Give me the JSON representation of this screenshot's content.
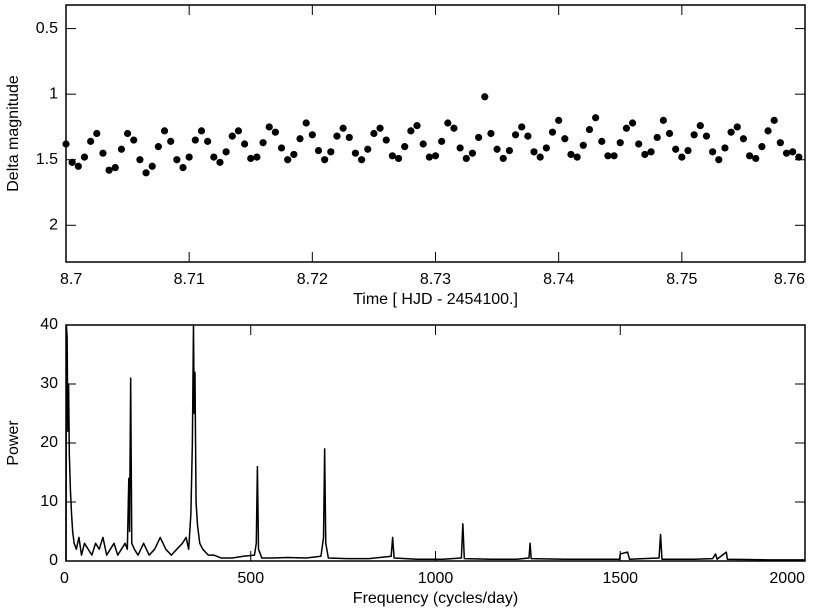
{
  "chart_data": [
    {
      "type": "scatter",
      "xlabel": "Time  [ HJD - 2454100.]",
      "ylabel": "Delta magnitude",
      "xlim": [
        8.7,
        8.76
      ],
      "xticks": [
        8.7,
        8.71,
        8.72,
        8.73,
        8.74,
        8.75,
        8.76
      ],
      "ylim": [
        2.28,
        0.32
      ],
      "yticks": [
        0.5,
        1,
        1.5,
        2
      ],
      "color": "#000000",
      "x": [
        8.7,
        8.7005,
        8.701,
        8.7015,
        8.702,
        8.7025,
        8.703,
        8.7035,
        8.704,
        8.7045,
        8.705,
        8.7055,
        8.706,
        8.7065,
        8.707,
        8.7075,
        8.708,
        8.7085,
        8.709,
        8.7095,
        8.71,
        8.7105,
        8.711,
        8.7115,
        8.712,
        8.7125,
        8.713,
        8.7135,
        8.714,
        8.7145,
        8.715,
        8.7155,
        8.716,
        8.7165,
        8.717,
        8.7175,
        8.718,
        8.7185,
        8.719,
        8.7195,
        8.72,
        8.7205,
        8.721,
        8.7215,
        8.722,
        8.7225,
        8.723,
        8.7235,
        8.724,
        8.7245,
        8.725,
        8.7255,
        8.726,
        8.7265,
        8.727,
        8.7275,
        8.728,
        8.7285,
        8.729,
        8.7295,
        8.73,
        8.7305,
        8.731,
        8.7315,
        8.732,
        8.7325,
        8.733,
        8.7335,
        8.734,
        8.7345,
        8.735,
        8.7355,
        8.736,
        8.7365,
        8.737,
        8.7375,
        8.738,
        8.7385,
        8.739,
        8.7395,
        8.74,
        8.7405,
        8.741,
        8.7415,
        8.742,
        8.7425,
        8.743,
        8.7435,
        8.744,
        8.7445,
        8.745,
        8.7455,
        8.746,
        8.7465,
        8.747,
        8.7475,
        8.748,
        8.7485,
        8.749,
        8.7495,
        8.75,
        8.7505,
        8.751,
        8.7515,
        8.752,
        8.7525,
        8.753,
        8.7535,
        8.754,
        8.7545,
        8.755,
        8.7555,
        8.756,
        8.7565,
        8.757,
        8.7575,
        8.758,
        8.7585,
        8.759,
        8.7595
      ],
      "values": [
        1.38,
        1.52,
        1.55,
        1.48,
        1.36,
        1.3,
        1.45,
        1.58,
        1.56,
        1.42,
        1.3,
        1.35,
        1.5,
        1.6,
        1.55,
        1.4,
        1.28,
        1.36,
        1.5,
        1.56,
        1.48,
        1.35,
        1.28,
        1.36,
        1.48,
        1.52,
        1.44,
        1.32,
        1.28,
        1.38,
        1.49,
        1.48,
        1.37,
        1.25,
        1.29,
        1.41,
        1.5,
        1.46,
        1.34,
        1.22,
        1.31,
        1.43,
        1.5,
        1.44,
        1.32,
        1.26,
        1.33,
        1.45,
        1.5,
        1.42,
        1.3,
        1.26,
        1.35,
        1.47,
        1.49,
        1.4,
        1.28,
        1.24,
        1.38,
        1.48,
        1.47,
        1.36,
        1.22,
        1.26,
        1.41,
        1.49,
        1.45,
        1.33,
        1.02,
        1.3,
        1.42,
        1.49,
        1.43,
        1.31,
        1.25,
        1.32,
        1.44,
        1.48,
        1.41,
        1.29,
        1.2,
        1.34,
        1.46,
        1.48,
        1.39,
        1.27,
        1.18,
        1.36,
        1.47,
        1.47,
        1.37,
        1.26,
        1.22,
        1.38,
        1.46,
        1.44,
        1.33,
        1.2,
        1.3,
        1.42,
        1.48,
        1.43,
        1.31,
        1.24,
        1.32,
        1.44,
        1.5,
        1.41,
        1.29,
        1.25,
        1.34,
        1.47,
        1.49,
        1.4,
        1.28,
        1.2,
        1.37,
        1.45,
        1.44,
        1.48
      ]
    },
    {
      "type": "line",
      "xlabel": "Frequency (cycles/day)",
      "ylabel": "Power",
      "xlim": [
        0,
        2000
      ],
      "xticks": [
        0,
        500,
        1000,
        1500,
        2000
      ],
      "ylim": [
        0,
        40
      ],
      "yticks": [
        0,
        10,
        20,
        30,
        40
      ],
      "color": "#000000",
      "x": [
        0,
        1,
        3,
        5,
        7,
        9,
        12,
        15,
        18,
        22,
        28,
        35,
        42,
        50,
        60,
        70,
        80,
        90,
        100,
        110,
        120,
        130,
        140,
        150,
        160,
        166,
        170,
        172,
        175,
        178,
        185,
        195,
        210,
        225,
        240,
        255,
        270,
        285,
        300,
        315,
        325,
        332,
        338,
        342,
        345,
        347,
        349,
        352,
        356,
        362,
        370,
        385,
        400,
        420,
        450,
        480,
        510,
        515,
        518,
        521,
        530,
        560,
        600,
        650,
        690,
        697,
        700,
        703,
        710,
        760,
        820,
        880,
        884,
        888,
        950,
        1020,
        1070,
        1074,
        1078,
        1150,
        1220,
        1253,
        1256,
        1259,
        1350,
        1450,
        1498,
        1500,
        1520,
        1525,
        1605,
        1609,
        1613,
        1700,
        1750,
        1758,
        1762,
        1787,
        1790,
        1900,
        2000
      ],
      "values": [
        0,
        40,
        38,
        22,
        30,
        18,
        12,
        8,
        5,
        3,
        2,
        4,
        1,
        3,
        2,
        1,
        3,
        2,
        4,
        1,
        2,
        3,
        1,
        2,
        3,
        2,
        14,
        5,
        31,
        3,
        2,
        1,
        3,
        1,
        2,
        4,
        2,
        1,
        2,
        3,
        4,
        2,
        8,
        20,
        40,
        25,
        32,
        10,
        6,
        3,
        2,
        1,
        1,
        0.5,
        0.5,
        0.8,
        1,
        3,
        16,
        2,
        0.5,
        0.5,
        0.6,
        0.5,
        0.8,
        4,
        19,
        3,
        0.5,
        0.4,
        0.4,
        0.8,
        4,
        0.5,
        0.3,
        0.3,
        0.5,
        6.3,
        0.4,
        0.3,
        0.3,
        0.5,
        3,
        0.4,
        0.3,
        0.3,
        0.3,
        1.2,
        1.5,
        0.3,
        0.5,
        4.5,
        0.3,
        0.3,
        0.4,
        1.2,
        0.3,
        1.5,
        0.3,
        0.2,
        0.2
      ]
    }
  ]
}
